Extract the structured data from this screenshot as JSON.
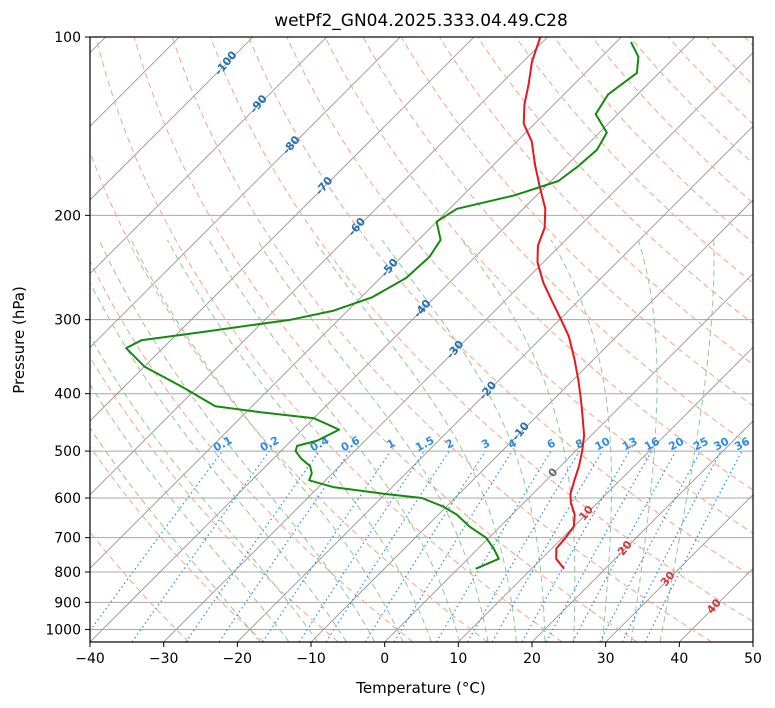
{
  "chart_data": {
    "type": "line",
    "title": "wetPf2_GN04.2025.333.04.49.C28",
    "xlabel": "Temperature (°C)",
    "ylabel": "Pressure (hPa)",
    "xlim": [
      -40,
      50
    ],
    "ylim_hpa": [
      1050,
      100
    ],
    "y_scale": "log",
    "skew": true,
    "grid": true,
    "x_ticks": [
      -40,
      -30,
      -20,
      -10,
      0,
      10,
      20,
      30,
      40,
      50
    ],
    "y_ticks": [
      1000,
      900,
      800,
      700,
      600,
      500,
      400,
      300,
      200,
      100
    ],
    "series": [
      {
        "name": "",
        "color": "#e8171b",
        "role": "temperature",
        "points": [
          [
            790,
            14.4
          ],
          [
            760,
            12.0
          ],
          [
            730,
            10.6
          ],
          [
            700,
            10.4
          ],
          [
            670,
            10.0
          ],
          [
            640,
            8.5
          ],
          [
            610,
            6.3
          ],
          [
            590,
            5.1
          ],
          [
            560,
            3.8
          ],
          [
            530,
            2.5
          ],
          [
            500,
            0.9
          ],
          [
            470,
            -1.0
          ],
          [
            440,
            -3.5
          ],
          [
            410,
            -6.2
          ],
          [
            380,
            -9.2
          ],
          [
            350,
            -12.6
          ],
          [
            320,
            -16.5
          ],
          [
            300,
            -19.8
          ],
          [
            280,
            -23.4
          ],
          [
            260,
            -27.2
          ],
          [
            240,
            -30.8
          ],
          [
            225,
            -33.0
          ],
          [
            210,
            -34.5
          ],
          [
            195,
            -37.0
          ],
          [
            180,
            -40.5
          ],
          [
            165,
            -44.2
          ],
          [
            150,
            -48.0
          ],
          [
            140,
            -51.5
          ],
          [
            130,
            -54.0
          ],
          [
            120,
            -56.2
          ],
          [
            110,
            -58.8
          ],
          [
            100,
            -61.0
          ]
        ]
      },
      {
        "name": "",
        "color": "#158a0f",
        "role": "dewpoint",
        "points": [
          [
            790,
            2.4
          ],
          [
            760,
            4.2
          ],
          [
            730,
            2.1
          ],
          [
            700,
            -0.4
          ],
          [
            670,
            -4.2
          ],
          [
            640,
            -7.5
          ],
          [
            620,
            -10.5
          ],
          [
            600,
            -14.5
          ],
          [
            590,
            -20.3
          ],
          [
            575,
            -28.0
          ],
          [
            560,
            -32.2
          ],
          [
            545,
            -32.8
          ],
          [
            530,
            -34.0
          ],
          [
            515,
            -36.2
          ],
          [
            500,
            -38.0
          ],
          [
            490,
            -38.5
          ],
          [
            480,
            -36.5
          ],
          [
            460,
            -35.0
          ],
          [
            440,
            -40.0
          ],
          [
            430,
            -48.0
          ],
          [
            420,
            -55.0
          ],
          [
            390,
            -62.0
          ],
          [
            360,
            -70.0
          ],
          [
            335,
            -75.0
          ],
          [
            325,
            -74.0
          ],
          [
            315,
            -67.0
          ],
          [
            300,
            -56.5
          ],
          [
            290,
            -52.0
          ],
          [
            275,
            -48.5
          ],
          [
            255,
            -46.5
          ],
          [
            235,
            -46.2
          ],
          [
            220,
            -47.0
          ],
          [
            205,
            -50.0
          ],
          [
            195,
            -49.0
          ],
          [
            185,
            -43.0
          ],
          [
            175,
            -39.0
          ],
          [
            165,
            -38.3
          ],
          [
            155,
            -38.0
          ],
          [
            145,
            -39.0
          ],
          [
            135,
            -43.0
          ],
          [
            125,
            -44.0
          ],
          [
            115,
            -43.0
          ],
          [
            108,
            -45.0
          ],
          [
            102,
            -48.0
          ]
        ]
      }
    ],
    "dry_adiabat_labels": [
      "-100",
      "-90",
      "-80",
      "-70",
      "-60",
      "-50",
      "-40",
      "-30",
      "-20",
      "-10"
    ],
    "mixing_ratio_labels": [
      "0.1",
      "0.2",
      "0.4",
      "0.6",
      "1",
      "1.5",
      "2",
      "3",
      "4",
      "6",
      "8",
      "10",
      "13",
      "16",
      "20",
      "25",
      "30",
      "36"
    ],
    "moist_adiabat_labels": [
      "0",
      "10",
      "20",
      "30",
      "40"
    ],
    "colors": {
      "temperature": "#e8171b",
      "dewpoint": "#158a0f",
      "dry_adiabat": "#f2a58a",
      "moist_adiabat": "#90c79a",
      "mixing_ratio": "#2a8de8",
      "isotherm": "#8c8c8c",
      "isobar": "#a8a8a8",
      "dry_label": "#1f6fb5",
      "moist_label": "#d4363a"
    }
  }
}
